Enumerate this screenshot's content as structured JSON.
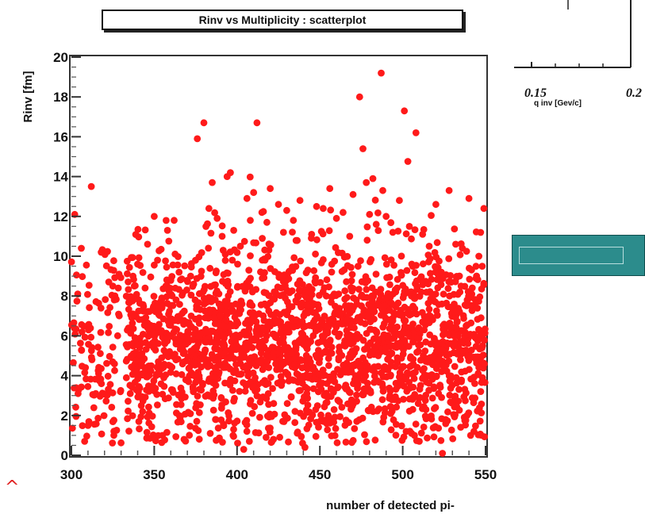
{
  "chart_data": {
    "type": "scatter",
    "title": "Rinv vs Multiplicity : scatterplot",
    "xlabel": "number of detected pi-",
    "ylabel": "Rinv [fm]",
    "xlim": [
      300,
      550
    ],
    "ylim": [
      0,
      20
    ],
    "xticks": [
      "300",
      "350",
      "400",
      "450",
      "500",
      "550"
    ],
    "yticks": [
      "0",
      "2",
      "4",
      "6",
      "8",
      "10",
      "12",
      "14",
      "16",
      "18",
      "20"
    ],
    "marker_color": "#ff1a1a",
    "grid": false,
    "series": [
      {
        "points": [
          [
            302,
            12.1
          ],
          [
            306,
            10.4
          ],
          [
            312,
            13.5
          ],
          [
            318,
            10.2
          ],
          [
            325,
            8.5
          ],
          [
            310,
            1.5
          ],
          [
            308,
            0.7
          ],
          [
            304,
            3.1
          ],
          [
            338,
            8.5
          ],
          [
            340,
            9.6
          ],
          [
            343,
            2.2
          ],
          [
            346,
            10.6
          ],
          [
            350,
            12.0
          ],
          [
            352,
            9.8
          ],
          [
            355,
            1.0
          ],
          [
            358,
            11.3
          ],
          [
            362,
            11.8
          ],
          [
            365,
            9.2
          ],
          [
            368,
            0.8
          ],
          [
            372,
            9.0
          ],
          [
            376,
            15.9
          ],
          [
            380,
            16.7
          ],
          [
            383,
            12.4
          ],
          [
            385,
            13.7
          ],
          [
            388,
            11.9
          ],
          [
            391,
            11.0
          ],
          [
            394,
            14.0
          ],
          [
            396,
            14.2
          ],
          [
            398,
            11.3
          ],
          [
            402,
            10.5
          ],
          [
            404,
            0.3
          ],
          [
            406,
            12.9
          ],
          [
            408,
            11.8
          ],
          [
            410,
            13.2
          ],
          [
            412,
            16.7
          ],
          [
            415,
            12.2
          ],
          [
            418,
            11.7
          ],
          [
            420,
            13.4
          ],
          [
            422,
            0.8
          ],
          [
            425,
            12.6
          ],
          [
            428,
            11.2
          ],
          [
            430,
            12.3
          ],
          [
            434,
            11.8
          ],
          [
            438,
            12.8
          ],
          [
            441,
            0.4
          ],
          [
            445,
            11.1
          ],
          [
            448,
            12.5
          ],
          [
            452,
            12.4
          ],
          [
            456,
            13.4
          ],
          [
            460,
            11.9
          ],
          [
            464,
            12.2
          ],
          [
            468,
            11.0
          ],
          [
            470,
            13.1
          ],
          [
            474,
            18.0
          ],
          [
            476,
            15.4
          ],
          [
            478,
            13.7
          ],
          [
            480,
            12.1
          ],
          [
            482,
            13.9
          ],
          [
            484,
            11.6
          ],
          [
            487,
            19.2
          ],
          [
            488,
            13.3
          ],
          [
            490,
            12.0
          ],
          [
            494,
            11.2
          ],
          [
            498,
            12.8
          ],
          [
            501,
            17.3
          ],
          [
            504,
            11.5
          ],
          [
            508,
            16.2
          ],
          [
            510,
            0.7
          ],
          [
            512,
            11.1
          ],
          [
            516,
            10.5
          ],
          [
            520,
            12.6
          ],
          [
            524,
            0.1
          ],
          [
            528,
            13.3
          ],
          [
            532,
            10.6
          ],
          [
            536,
            10.4
          ],
          [
            540,
            12.9
          ],
          [
            543,
            1.2
          ],
          [
            546,
            10.0
          ],
          [
            548,
            9.5
          ],
          [
            549,
            12.4
          ]
        ],
        "cloud": [
          {
            "x_range": [
              300,
              330
            ],
            "y_center": 5.5,
            "y_spread": 2.8,
            "count": 120
          },
          {
            "x_range": [
              333,
              550
            ],
            "y_center": 5.6,
            "y_spread": 2.4,
            "count": 2200
          }
        ]
      }
    ]
  },
  "side_panel": {
    "tick_a": "0.15",
    "tick_b": "0.2",
    "axis_label": "q inv [Gev/c]"
  },
  "corner_mark": "^"
}
